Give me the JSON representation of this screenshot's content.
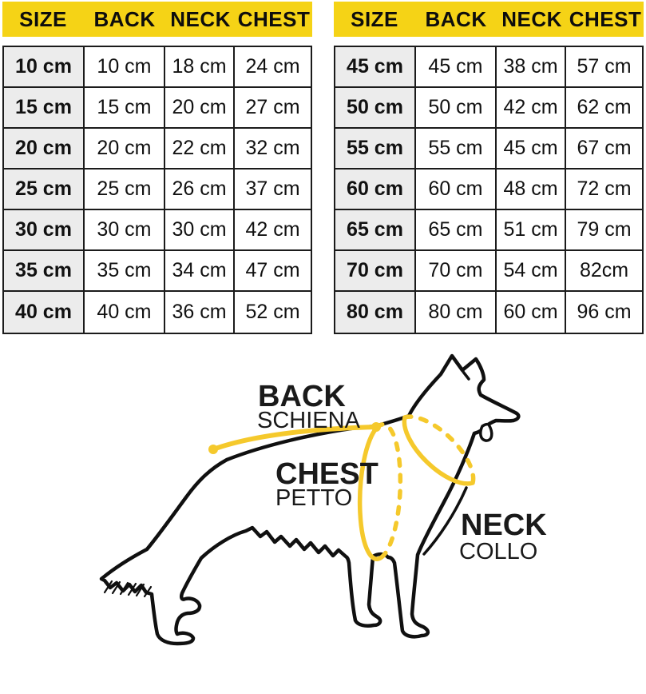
{
  "tables": [
    {
      "headers": [
        "SIZE",
        "BACK",
        "NECK",
        "CHEST"
      ],
      "rows": [
        [
          "10 cm",
          "10 cm",
          "18 cm",
          "24 cm"
        ],
        [
          "15 cm",
          "15 cm",
          "20 cm",
          "27 cm"
        ],
        [
          "20 cm",
          "20 cm",
          "22 cm",
          "32 cm"
        ],
        [
          "25 cm",
          "25 cm",
          "26 cm",
          "37 cm"
        ],
        [
          "30 cm",
          "30 cm",
          "30 cm",
          "42 cm"
        ],
        [
          "35 cm",
          "35 cm",
          "34 cm",
          "47 cm"
        ],
        [
          "40 cm",
          "40 cm",
          "36 cm",
          "52 cm"
        ]
      ]
    },
    {
      "headers": [
        "SIZE",
        "BACK",
        "NECK",
        "CHEST"
      ],
      "rows": [
        [
          "45 cm",
          "45 cm",
          "38 cm",
          "57 cm"
        ],
        [
          "50 cm",
          "50 cm",
          "42 cm",
          "62 cm"
        ],
        [
          "55 cm",
          "55 cm",
          "45 cm",
          "67 cm"
        ],
        [
          "60 cm",
          "60 cm",
          "48 cm",
          "72 cm"
        ],
        [
          "65 cm",
          "65 cm",
          "51 cm",
          "79 cm"
        ],
        [
          "70 cm",
          "70 cm",
          "54 cm",
          "82cm"
        ],
        [
          "80 cm",
          "80 cm",
          "60 cm",
          "96 cm"
        ]
      ]
    }
  ],
  "diagram": {
    "back": {
      "en": "BACK",
      "it": "SCHIENA"
    },
    "chest": {
      "en": "CHEST",
      "it": "PETTO"
    },
    "neck": {
      "en": "NECK",
      "it": "COLLO"
    }
  },
  "colors": {
    "header_yellow": "#F5D316",
    "measure_gold": "#F5C92C",
    "size_column_gray": "#ECECEC",
    "line_black": "#101010"
  }
}
